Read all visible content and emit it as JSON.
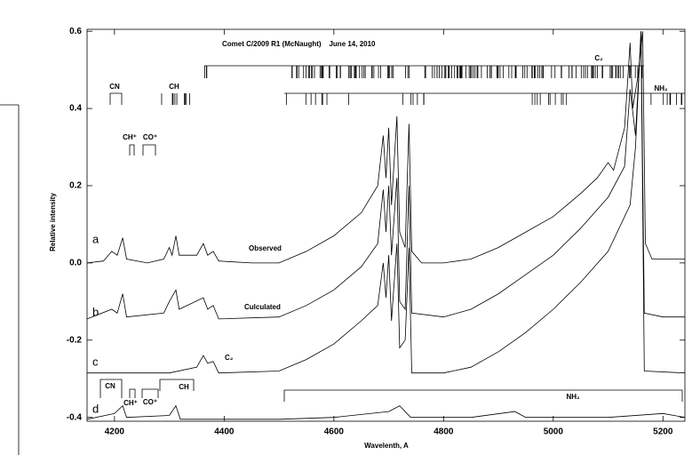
{
  "chart_data": {
    "type": "line",
    "title": "Comet C/2009 R1 (McNaught)    June 14, 2010",
    "x_label": "Wavelenth, A",
    "y_label": "Relative intensity",
    "xlim": [
      4150,
      5240
    ],
    "ylim": [
      -0.41,
      0.605
    ],
    "xticks": [
      4200,
      4400,
      4600,
      4800,
      5000,
      5200
    ],
    "yticks": [
      -0.4,
      -0.2,
      {
        "value": 0,
        "label": "0.0"
      },
      0.2,
      0.4,
      0.6
    ],
    "bands": [
      "CN",
      "CH",
      "CH⁺",
      "CO⁺",
      "C₂",
      "NH₂"
    ],
    "bottom_bands": [
      "CN",
      "CH⁺",
      "CO⁺",
      "CH",
      "NH₂"
    ],
    "series": [
      {
        "letter": "a",
        "name": "Observed",
        "color": "#000000",
        "x": [
          4150,
          4180,
          4195,
          4205,
          4215,
          4222,
          4260,
          4290,
          4300,
          4305,
          4312,
          4318,
          4350,
          4362,
          4370,
          4380,
          4390,
          4450,
          4500,
          4550,
          4600,
          4650,
          4680,
          4690,
          4695,
          4700,
          4705,
          4715,
          4720,
          4730,
          4737,
          4742,
          4760,
          4800,
          4850,
          4900,
          4950,
          5000,
          5050,
          5080,
          5100,
          5110,
          5130,
          5140,
          5145,
          5155,
          5163,
          5168,
          5180,
          5200,
          5240
        ],
        "values": [
          0.0,
          0.005,
          0.03,
          0.02,
          0.065,
          0.01,
          0.0,
          0.01,
          0.04,
          0.02,
          0.07,
          0.02,
          0.02,
          0.05,
          0.02,
          0.03,
          0.005,
          0.0,
          0.0,
          0.03,
          0.07,
          0.13,
          0.2,
          0.33,
          0.22,
          0.35,
          0.15,
          0.38,
          0.08,
          0.04,
          0.36,
          0.03,
          0.0,
          0.0,
          0.01,
          0.04,
          0.08,
          0.12,
          0.18,
          0.22,
          0.26,
          0.24,
          0.35,
          0.57,
          0.4,
          0.49,
          0.6,
          0.05,
          0.01,
          0.01,
          0.01
        ]
      },
      {
        "letter": "b",
        "name": "Culculated",
        "color": "#000000",
        "x": [
          4150,
          4195,
          4205,
          4215,
          4222,
          4290,
          4300,
          4312,
          4318,
          4362,
          4370,
          4380,
          4390,
          4500,
          4550,
          4600,
          4650,
          4680,
          4690,
          4695,
          4700,
          4705,
          4715,
          4720,
          4730,
          4737,
          4742,
          4800,
          4850,
          4900,
          4950,
          5000,
          5050,
          5100,
          5130,
          5140,
          5150,
          5160,
          5166,
          5200,
          5240
        ],
        "values": [
          -0.145,
          -0.12,
          -0.13,
          -0.08,
          -0.14,
          -0.13,
          -0.1,
          -0.07,
          -0.12,
          -0.09,
          -0.12,
          -0.11,
          -0.145,
          -0.14,
          -0.11,
          -0.07,
          -0.01,
          0.05,
          0.19,
          0.08,
          0.2,
          0.02,
          0.22,
          -0.1,
          -0.12,
          0.2,
          -0.13,
          -0.14,
          -0.12,
          -0.08,
          -0.03,
          0.02,
          0.09,
          0.17,
          0.25,
          0.45,
          0.33,
          0.6,
          -0.13,
          -0.14,
          -0.14
        ]
      },
      {
        "letter": "c",
        "name": "C₂",
        "color": "#000000",
        "x": [
          4150,
          4300,
          4350,
          4362,
          4370,
          4380,
          4390,
          4500,
          4550,
          4600,
          4650,
          4680,
          4690,
          4695,
          4700,
          4705,
          4715,
          4720,
          4730,
          4737,
          4742,
          4800,
          4850,
          4900,
          4950,
          5000,
          5050,
          5100,
          5140,
          5150,
          5160,
          5166,
          5240
        ],
        "values": [
          -0.285,
          -0.285,
          -0.27,
          -0.24,
          -0.26,
          -0.255,
          -0.285,
          -0.28,
          -0.25,
          -0.21,
          -0.15,
          -0.11,
          0.0,
          -0.09,
          0.02,
          -0.15,
          0.05,
          -0.22,
          -0.2,
          0.04,
          -0.285,
          -0.285,
          -0.27,
          -0.23,
          -0.18,
          -0.12,
          -0.05,
          0.03,
          0.15,
          0.3,
          0.6,
          -0.28,
          -0.285
        ]
      },
      {
        "letter": "d",
        "color": "#000000",
        "x": [
          4150,
          4200,
          4215,
          4222,
          4300,
          4312,
          4320,
          4500,
          4600,
          4700,
          4720,
          4740,
          4850,
          4930,
          4950,
          5100,
          5200,
          5240
        ],
        "values": [
          -0.405,
          -0.39,
          -0.37,
          -0.4,
          -0.395,
          -0.37,
          -0.405,
          -0.405,
          -0.4,
          -0.385,
          -0.37,
          -0.4,
          -0.4,
          -0.385,
          -0.4,
          -0.4,
          -0.39,
          -0.4
        ]
      }
    ]
  }
}
